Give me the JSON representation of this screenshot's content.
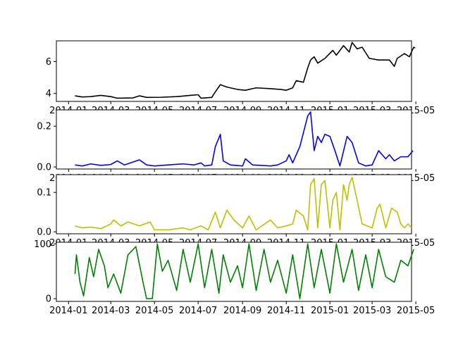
{
  "chart_data": [
    {
      "type": "line",
      "color": "#000000",
      "x_ticks": [
        "2014-01",
        "2014-03",
        "2014-05",
        "2014-07",
        "2014-09",
        "2014-11",
        "2015-01",
        "2015-03",
        "2015-05"
      ],
      "xlim": [
        "2013-12-15",
        "2015-04-25"
      ],
      "ylim": [
        3.5,
        7.3
      ],
      "y_ticks": [
        "4",
        "6"
      ],
      "y_tick_values": [
        4,
        6
      ],
      "series": [
        {
          "points": [
            [
              "2014-01-10",
              3.85
            ],
            [
              "2014-01-20",
              3.78
            ],
            [
              "2014-02-01",
              3.8
            ],
            [
              "2014-02-15",
              3.88
            ],
            [
              "2014-03-01",
              3.8
            ],
            [
              "2014-03-10",
              3.7
            ],
            [
              "2014-04-01",
              3.72
            ],
            [
              "2014-04-10",
              3.85
            ],
            [
              "2014-04-20",
              3.75
            ],
            [
              "2014-05-10",
              3.76
            ],
            [
              "2014-06-01",
              3.8
            ],
            [
              "2014-06-20",
              3.88
            ],
            [
              "2014-07-01",
              3.92
            ],
            [
              "2014-07-05",
              3.7
            ],
            [
              "2014-07-20",
              3.75
            ],
            [
              "2014-07-25",
              4.1
            ],
            [
              "2014-08-01",
              4.55
            ],
            [
              "2014-08-10",
              4.4
            ],
            [
              "2014-08-25",
              4.25
            ],
            [
              "2014-09-05",
              4.2
            ],
            [
              "2014-09-20",
              4.35
            ],
            [
              "2014-10-10",
              4.3
            ],
            [
              "2014-10-25",
              4.25
            ],
            [
              "2014-11-01",
              4.2
            ],
            [
              "2014-11-10",
              4.35
            ],
            [
              "2014-11-15",
              4.8
            ],
            [
              "2014-11-25",
              4.7
            ],
            [
              "2014-12-01",
              5.6
            ],
            [
              "2014-12-05",
              6.1
            ],
            [
              "2014-12-10",
              6.3
            ],
            [
              "2014-12-15",
              5.9
            ],
            [
              "2014-12-25",
              6.2
            ],
            [
              "2015-01-05",
              6.7
            ],
            [
              "2015-01-10",
              6.4
            ],
            [
              "2015-01-20",
              7.0
            ],
            [
              "2015-01-28",
              6.6
            ],
            [
              "2015-02-01",
              7.2
            ],
            [
              "2015-02-08",
              6.8
            ],
            [
              "2015-02-15",
              6.9
            ],
            [
              "2015-02-25",
              6.2
            ],
            [
              "2015-03-10",
              6.1
            ],
            [
              "2015-03-25",
              6.1
            ],
            [
              "2015-04-01",
              5.7
            ],
            [
              "2015-04-05",
              6.2
            ],
            [
              "2015-04-15",
              6.5
            ],
            [
              "2015-04-22",
              6.3
            ],
            [
              "2015-04-25",
              6.6
            ],
            [
              "2015-04-28",
              6.9
            ],
            [
              "2015-04-30",
              6.85
            ]
          ]
        }
      ]
    },
    {
      "type": "line",
      "color": "#0000ff",
      "x_ticks": [
        "2014-01",
        "2014-03",
        "2014-05",
        "2014-07",
        "2014-09",
        "2014-11",
        "2015-01",
        "2015-03",
        "2015-05"
      ],
      "xlim": [
        "2013-12-15",
        "2015-04-25"
      ],
      "ylim": [
        -0.01,
        0.28
      ],
      "y_ticks": [
        "0.0",
        "0.2"
      ],
      "y_tick_values": [
        0.0,
        0.2
      ],
      "series": [
        {
          "points": [
            [
              "2014-01-10",
              0.01
            ],
            [
              "2014-01-20",
              0.005
            ],
            [
              "2014-02-01",
              0.015
            ],
            [
              "2014-02-15",
              0.008
            ],
            [
              "2014-03-01",
              0.012
            ],
            [
              "2014-03-10",
              0.03
            ],
            [
              "2014-03-20",
              0.01
            ],
            [
              "2014-04-10",
              0.035
            ],
            [
              "2014-04-20",
              0.01
            ],
            [
              "2014-05-01",
              0.005
            ],
            [
              "2014-05-20",
              0.01
            ],
            [
              "2014-06-10",
              0.015
            ],
            [
              "2014-06-25",
              0.01
            ],
            [
              "2014-07-05",
              0.02
            ],
            [
              "2014-07-10",
              0.005
            ],
            [
              "2014-07-20",
              0.01
            ],
            [
              "2014-07-25",
              0.1
            ],
            [
              "2014-08-01",
              0.16
            ],
            [
              "2014-08-05",
              0.03
            ],
            [
              "2014-08-15",
              0.01
            ],
            [
              "2014-09-01",
              0.005
            ],
            [
              "2014-09-05",
              0.04
            ],
            [
              "2014-09-15",
              0.01
            ],
            [
              "2014-10-10",
              0.005
            ],
            [
              "2014-10-20",
              0.01
            ],
            [
              "2014-11-01",
              0.03
            ],
            [
              "2014-11-05",
              0.06
            ],
            [
              "2014-11-10",
              0.02
            ],
            [
              "2014-11-20",
              0.1
            ],
            [
              "2014-12-01",
              0.25
            ],
            [
              "2014-12-05",
              0.27
            ],
            [
              "2014-12-10",
              0.08
            ],
            [
              "2014-12-15",
              0.15
            ],
            [
              "2014-12-20",
              0.12
            ],
            [
              "2014-12-25",
              0.16
            ],
            [
              "2015-01-01",
              0.15
            ],
            [
              "2015-01-08",
              0.08
            ],
            [
              "2015-01-15",
              0.005
            ],
            [
              "2015-01-25",
              0.15
            ],
            [
              "2015-02-01",
              0.12
            ],
            [
              "2015-02-10",
              0.02
            ],
            [
              "2015-02-20",
              0.005
            ],
            [
              "2015-03-01",
              0.01
            ],
            [
              "2015-03-10",
              0.08
            ],
            [
              "2015-03-20",
              0.04
            ],
            [
              "2015-03-25",
              0.06
            ],
            [
              "2015-04-01",
              0.03
            ],
            [
              "2015-04-10",
              0.05
            ],
            [
              "2015-04-20",
              0.05
            ],
            [
              "2015-04-27",
              0.08
            ]
          ]
        }
      ]
    },
    {
      "type": "line",
      "color": "#bfbf00",
      "x_ticks": [
        "2014-01",
        "2014-03",
        "2014-05",
        "2014-07",
        "2014-09",
        "2014-11",
        "2015-01",
        "2015-03",
        "2015-05"
      ],
      "xlim": [
        "2013-12-15",
        "2015-04-25"
      ],
      "ylim": [
        -0.005,
        0.145
      ],
      "y_ticks": [
        "0.0",
        "0.1"
      ],
      "y_tick_values": [
        0.0,
        0.1
      ],
      "series": [
        {
          "points": [
            [
              "2014-01-10",
              0.015
            ],
            [
              "2014-01-20",
              0.01
            ],
            [
              "2014-02-01",
              0.012
            ],
            [
              "2014-02-15",
              0.008
            ],
            [
              "2014-03-01",
              0.02
            ],
            [
              "2014-03-05",
              0.03
            ],
            [
              "2014-03-15",
              0.015
            ],
            [
              "2014-03-25",
              0.025
            ],
            [
              "2014-04-10",
              0.015
            ],
            [
              "2014-04-25",
              0.025
            ],
            [
              "2014-05-01",
              0.005
            ],
            [
              "2014-05-20",
              0.005
            ],
            [
              "2014-06-10",
              0.01
            ],
            [
              "2014-06-20",
              0.005
            ],
            [
              "2014-07-05",
              0.015
            ],
            [
              "2014-07-15",
              0.005
            ],
            [
              "2014-07-25",
              0.05
            ],
            [
              "2014-08-01",
              0.01
            ],
            [
              "2014-08-10",
              0.055
            ],
            [
              "2014-08-20",
              0.03
            ],
            [
              "2014-09-01",
              0.01
            ],
            [
              "2014-09-10",
              0.04
            ],
            [
              "2014-09-20",
              0.005
            ],
            [
              "2014-10-10",
              0.03
            ],
            [
              "2014-10-20",
              0.01
            ],
            [
              "2014-11-01",
              0.015
            ],
            [
              "2014-11-10",
              0.02
            ],
            [
              "2014-11-15",
              0.055
            ],
            [
              "2014-11-25",
              0.04
            ],
            [
              "2014-12-01",
              0.005
            ],
            [
              "2014-12-05",
              0.12
            ],
            [
              "2014-12-10",
              0.135
            ],
            [
              "2014-12-15",
              0.01
            ],
            [
              "2014-12-20",
              0.12
            ],
            [
              "2014-12-25",
              0.13
            ],
            [
              "2015-01-01",
              0.01
            ],
            [
              "2015-01-05",
              0.08
            ],
            [
              "2015-01-10",
              0.1
            ],
            [
              "2015-01-15",
              0.005
            ],
            [
              "2015-01-20",
              0.12
            ],
            [
              "2015-01-25",
              0.08
            ],
            [
              "2015-01-28",
              0.12
            ],
            [
              "2015-02-01",
              0.138
            ],
            [
              "2015-02-08",
              0.08
            ],
            [
              "2015-02-15",
              0.02
            ],
            [
              "2015-03-01",
              0.01
            ],
            [
              "2015-03-08",
              0.06
            ],
            [
              "2015-03-12",
              0.07
            ],
            [
              "2015-03-20",
              0.01
            ],
            [
              "2015-03-28",
              0.06
            ],
            [
              "2015-04-05",
              0.05
            ],
            [
              "2015-04-10",
              0.02
            ],
            [
              "2015-04-15",
              0.01
            ],
            [
              "2015-04-20",
              0.02
            ],
            [
              "2015-04-25",
              0.01
            ]
          ]
        }
      ]
    },
    {
      "type": "line",
      "color": "#008000",
      "x_ticks": [
        "2014-01",
        "2014-03",
        "2014-05",
        "2014-07",
        "2014-09",
        "2014-11",
        "2015-01",
        "2015-03",
        "2015-05"
      ],
      "xlim": [
        "2013-12-15",
        "2015-04-25"
      ],
      "ylim": [
        -5,
        103
      ],
      "y_ticks": [
        "0",
        "100"
      ],
      "y_tick_values": [
        0,
        100
      ],
      "series": [
        {
          "points": [
            [
              "2014-01-10",
              45
            ],
            [
              "2014-01-12",
              80
            ],
            [
              "2014-01-17",
              30
            ],
            [
              "2014-01-22",
              5
            ],
            [
              "2014-01-30",
              75
            ],
            [
              "2014-02-05",
              40
            ],
            [
              "2014-02-12",
              90
            ],
            [
              "2014-02-20",
              60
            ],
            [
              "2014-02-25",
              20
            ],
            [
              "2014-03-05",
              45
            ],
            [
              "2014-03-15",
              10
            ],
            [
              "2014-03-25",
              80
            ],
            [
              "2014-04-05",
              95
            ],
            [
              "2014-04-15",
              30
            ],
            [
              "2014-04-20",
              0
            ],
            [
              "2014-04-28",
              0
            ],
            [
              "2014-05-05",
              100
            ],
            [
              "2014-05-12",
              50
            ],
            [
              "2014-05-20",
              70
            ],
            [
              "2014-06-01",
              15
            ],
            [
              "2014-06-10",
              90
            ],
            [
              "2014-06-20",
              30
            ],
            [
              "2014-07-01",
              100
            ],
            [
              "2014-07-10",
              20
            ],
            [
              "2014-07-20",
              90
            ],
            [
              "2014-07-30",
              10
            ],
            [
              "2014-08-05",
              80
            ],
            [
              "2014-08-15",
              30
            ],
            [
              "2014-08-25",
              60
            ],
            [
              "2014-09-01",
              20
            ],
            [
              "2014-09-10",
              100
            ],
            [
              "2014-09-20",
              15
            ],
            [
              "2014-10-01",
              90
            ],
            [
              "2014-10-10",
              30
            ],
            [
              "2014-10-20",
              70
            ],
            [
              "2014-11-01",
              10
            ],
            [
              "2014-11-10",
              80
            ],
            [
              "2014-11-20",
              0
            ],
            [
              "2014-12-01",
              100
            ],
            [
              "2014-12-10",
              20
            ],
            [
              "2014-12-20",
              90
            ],
            [
              "2015-01-01",
              10
            ],
            [
              "2015-01-10",
              100
            ],
            [
              "2015-01-20",
              30
            ],
            [
              "2015-02-01",
              90
            ],
            [
              "2015-02-10",
              15
            ],
            [
              "2015-02-20",
              80
            ],
            [
              "2015-03-01",
              20
            ],
            [
              "2015-03-10",
              90
            ],
            [
              "2015-03-20",
              40
            ],
            [
              "2015-04-01",
              30
            ],
            [
              "2015-04-10",
              70
            ],
            [
              "2015-04-20",
              60
            ],
            [
              "2015-04-28",
              90
            ]
          ]
        }
      ]
    }
  ]
}
